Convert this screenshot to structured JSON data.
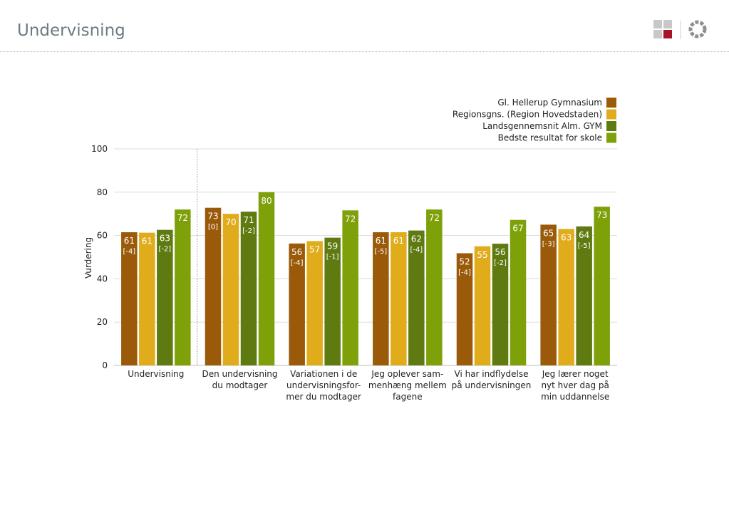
{
  "header": {
    "title": "Undervisning"
  },
  "logo": {
    "icon": "grid-squares-logo-icon",
    "icon2": "ring-logo-icon"
  },
  "chart_data": {
    "type": "bar",
    "ylabel": "Vurdering",
    "ylim": [
      0,
      100
    ],
    "yticks": [
      0,
      20,
      40,
      60,
      80,
      100
    ],
    "grid": true,
    "legend_position": "top-right",
    "categories": [
      [
        "Undervisning"
      ],
      [
        "Den undervisning",
        "du modtager"
      ],
      [
        "Variationen i de",
        "undervisningsfor-",
        "mer du modtager"
      ],
      [
        "Jeg oplever sam-",
        "menhæng mellem",
        "fagene"
      ],
      [
        "Vi har indflydelse",
        "på undervisningen"
      ],
      [
        "Jeg lærer noget",
        "nyt hver dag på",
        "min uddannelse"
      ]
    ],
    "series": [
      {
        "name": "Gl. Hellerup Gymnasium",
        "color": "#9a5a0a",
        "values": [
          61,
          73,
          56,
          61,
          52,
          65
        ],
        "deltas": [
          "[-4]",
          "[0]",
          "[-4]",
          "[-5]",
          "[-4]",
          "[-3]"
        ]
      },
      {
        "name": "Regionsgns. (Region Hovedstaden)",
        "color": "#e0ac1c",
        "values": [
          61,
          70,
          57,
          61,
          55,
          63
        ],
        "deltas": [
          "",
          "",
          "",
          "",
          "",
          ""
        ]
      },
      {
        "name": "Landsgennemsnit Alm. GYM",
        "color": "#5e7a10",
        "values": [
          63,
          71,
          59,
          62,
          56,
          64
        ],
        "deltas": [
          "[-2]",
          "[-2]",
          "[-1]",
          "[-4]",
          "[-2]",
          "[-5]"
        ]
      },
      {
        "name": "Bedste resultat for skole",
        "color": "#7ea10a",
        "values": [
          72,
          80,
          72,
          72,
          67,
          73
        ],
        "deltas": [
          "",
          "",
          "",
          "",
          "",
          ""
        ]
      }
    ],
    "bar_values_precise": [
      [
        61.5,
        72.8,
        56.3,
        61.5,
        51.8,
        65.0
      ],
      [
        61.3,
        70.0,
        57.4,
        61.5,
        55.0,
        63.0
      ],
      [
        62.6,
        71.0,
        59.0,
        62.3,
        56.2,
        64.2
      ],
      [
        72.0,
        80.0,
        71.6,
        72.0,
        67.2,
        73.3
      ]
    ]
  }
}
